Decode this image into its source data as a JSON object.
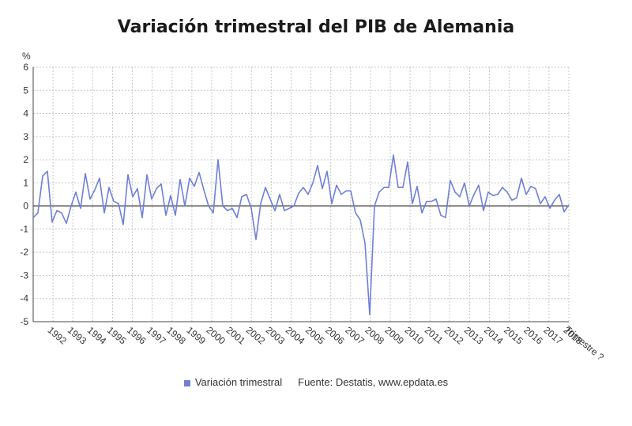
{
  "chart_data": {
    "type": "line",
    "title": "Variación trimestral del PIB de Alemania",
    "ylabel": "%",
    "xlabel": "Trimestre ?",
    "ylim": [
      -5,
      6
    ],
    "yticks": [
      6,
      5,
      4,
      3,
      2,
      1,
      0,
      -1,
      -2,
      -3,
      -4,
      -5
    ],
    "x_tick_labels": [
      "1992",
      "1993",
      "1994",
      "1995",
      "1996",
      "1997",
      "1998",
      "1999",
      "2000",
      "2001",
      "2002",
      "2003",
      "2004",
      "2005",
      "2006",
      "2007",
      "2008",
      "2009",
      "2010",
      "2011",
      "2012",
      "2013",
      "2014",
      "2015",
      "2016",
      "2017",
      "2018"
    ],
    "grid": true,
    "legend_position": "bottom",
    "series": [
      {
        "name": "Variación trimestral",
        "color": "#6f7fd8",
        "values": [
          -0.5,
          -0.3,
          1.3,
          1.5,
          -0.7,
          -0.2,
          -0.3,
          -0.75,
          0.0,
          0.6,
          -0.1,
          1.4,
          0.3,
          0.7,
          1.2,
          -0.3,
          0.8,
          0.2,
          0.1,
          -0.8,
          1.35,
          0.4,
          0.75,
          -0.5,
          1.35,
          0.3,
          0.75,
          0.95,
          -0.4,
          0.45,
          -0.4,
          1.15,
          0.0,
          1.2,
          0.85,
          1.45,
          0.7,
          0.0,
          -0.3,
          2.0,
          0.0,
          -0.2,
          -0.1,
          -0.5,
          0.4,
          0.5,
          -0.1,
          -1.45,
          0.1,
          0.8,
          0.3,
          -0.2,
          0.5,
          -0.2,
          -0.1,
          0.0,
          0.55,
          0.8,
          0.5,
          1.0,
          1.75,
          0.75,
          1.5,
          0.1,
          0.9,
          0.5,
          0.65,
          0.65,
          -0.3,
          -0.6,
          -1.6,
          -4.7,
          0.0,
          0.6,
          0.8,
          0.8,
          2.2,
          0.8,
          0.8,
          1.9,
          0.1,
          0.85,
          -0.3,
          0.2,
          0.2,
          0.3,
          -0.4,
          -0.5,
          1.1,
          0.6,
          0.4,
          1.0,
          0.0,
          0.5,
          0.9,
          -0.2,
          0.6,
          0.45,
          0.5,
          0.8,
          0.6,
          0.25,
          0.35,
          1.2,
          0.5,
          0.85,
          0.75,
          0.1,
          0.4,
          -0.1,
          0.25,
          0.5,
          -0.25,
          0.05
        ]
      }
    ]
  },
  "legend": {
    "series_label": "Variación trimestral",
    "source": "Fuente: Destatis, www.epdata.es"
  }
}
